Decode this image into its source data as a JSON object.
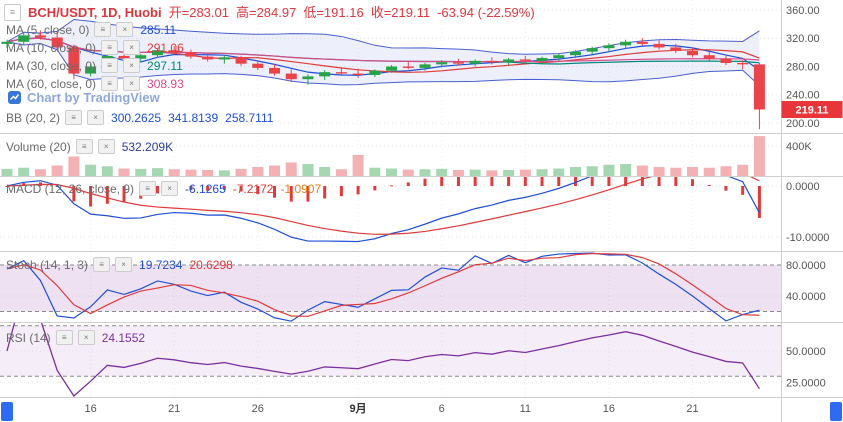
{
  "header": {
    "pair": "BCH/USDT, 1D, Huobi",
    "open": "开=283.01",
    "high": "高=284.97",
    "low": "低=191.16",
    "close": "收=219.11",
    "change": "-63.94 (-22.59%)"
  },
  "overlays": {
    "ma5": {
      "label": "MA (5, close, 0)",
      "value": "285.11"
    },
    "ma10": {
      "label": "MA (10, close, 0)",
      "value": "291.06"
    },
    "ma30": {
      "label": "MA (30, close, 0)",
      "value": "297.11"
    },
    "ma60": {
      "label": "MA (60, close, 0)",
      "value": "308.93"
    },
    "bb": {
      "label": "BB (20, 2)",
      "values": [
        "300.2625",
        "341.8139",
        "258.7111"
      ]
    }
  },
  "watermark": "Chart by TradingView",
  "panes": {
    "volume": {
      "label": "Volume (20)",
      "value": "532.209K"
    },
    "macd": {
      "label": "MACD (12, 26, close, 9)",
      "values": [
        "-6.1265",
        "-7.2172",
        "-1.0907"
      ]
    },
    "stoch": {
      "label": "Stoch (14, 1, 3)",
      "values": [
        "19.7234",
        "20.6298"
      ]
    },
    "rsi": {
      "label": "RSI (14)",
      "value": "24.1552"
    }
  },
  "axis": {
    "price_ticks": [
      "360.00",
      "320.00",
      "280.00",
      "240.00",
      "200.00"
    ],
    "last_price": "219.11",
    "volume_tick": "400K",
    "macd_ticks": [
      "0.0000",
      "-10.0000"
    ],
    "stoch_ticks": [
      "80.0000",
      "40.0000"
    ],
    "rsi_ticks": [
      "50.0000",
      "25.0000"
    ]
  },
  "chart_data": {
    "type": "candlestick",
    "title": "BCH/USDT, 1D, Huobi",
    "exchange": "Huobi",
    "interval": "1D",
    "last": {
      "open": 283.01,
      "high": 284.97,
      "low": 191.16,
      "close": 219.11,
      "change": -63.94,
      "change_pct": -22.59
    },
    "indicators": {
      "ma5": 285.11,
      "ma10": 291.06,
      "ma30": 297.11,
      "ma60": 308.93,
      "bb_20_2": [
        300.2625,
        341.8139,
        258.7111
      ],
      "volume": 532209,
      "macd_12_26_9": [
        -6.1265,
        -7.2172,
        -1.0907
      ],
      "stoch_14_1_3": [
        19.7234,
        20.6298
      ],
      "rsi_14": 24.1552
    },
    "colors": {
      "up": "#26a347",
      "down": "#e8444a",
      "vol_up": "#a5d8b2",
      "vol_down": "#f3b1b4",
      "ma5": "#1f4fd8",
      "ma10": "#e03a3a",
      "ma30": "#00897b",
      "ma60": "#d84a8a",
      "bb": "#4a5fd0",
      "bb_fill": "rgba(74,95,208,0.10)",
      "macd_line": "#1f4fd8",
      "signal_line": "#e03a3a",
      "hist": "#e03a3a",
      "stoch_k": "#1f4fd8",
      "stoch_d": "#e03a3a",
      "band_fill": "rgba(155,89,182,0.18)",
      "rsi_line": "#7b2fa0",
      "rsi_fill": "rgba(155,89,182,0.10)",
      "tag": "#e8353a"
    },
    "price_axis": {
      "ticks": [
        360,
        320,
        280,
        240,
        200
      ],
      "last": 219.11
    },
    "volume_axis": {
      "ticks": [
        400000
      ]
    },
    "macd_axis": {
      "ticks": [
        0,
        -10
      ]
    },
    "stoch_axis": {
      "ticks": [
        80,
        40
      ],
      "bands": [
        80,
        20
      ]
    },
    "rsi_axis": {
      "ticks": [
        50,
        25
      ],
      "bands": [
        70,
        30
      ]
    },
    "x_axis": {
      "labels": [
        {
          "i": 5,
          "t": "16"
        },
        {
          "i": 10,
          "t": "21"
        },
        {
          "i": 15,
          "t": "26"
        },
        {
          "i": 21,
          "t": "9月",
          "b": true
        },
        {
          "i": 26,
          "t": "6"
        },
        {
          "i": 31,
          "t": "11"
        },
        {
          "i": 36,
          "t": "16"
        },
        {
          "i": 41,
          "t": "21"
        }
      ]
    },
    "candles": [
      [
        312,
        318,
        306,
        315,
        95000
      ],
      [
        315,
        327,
        311,
        324,
        110000
      ],
      [
        324,
        331,
        318,
        321,
        90000
      ],
      [
        321,
        329,
        303,
        307,
        140000
      ],
      [
        307,
        311,
        262,
        270,
        260000
      ],
      [
        270,
        284,
        266,
        280,
        150000
      ],
      [
        280,
        297,
        277,
        295,
        130000
      ],
      [
        295,
        301,
        288,
        291,
        100000
      ],
      [
        291,
        298,
        286,
        296,
        95000
      ],
      [
        296,
        306,
        292,
        303,
        105000
      ],
      [
        303,
        309,
        297,
        300,
        90000
      ],
      [
        300,
        304,
        291,
        294,
        85000
      ],
      [
        294,
        299,
        287,
        290,
        80000
      ],
      [
        290,
        296,
        284,
        293,
        75000
      ],
      [
        293,
        295,
        281,
        284,
        95000
      ],
      [
        284,
        289,
        275,
        278,
        120000
      ],
      [
        278,
        283,
        267,
        270,
        140000
      ],
      [
        270,
        276,
        258,
        262,
        180000
      ],
      [
        262,
        269,
        254,
        266,
        160000
      ],
      [
        266,
        275,
        261,
        272,
        120000
      ],
      [
        272,
        279,
        268,
        270,
        90000
      ],
      [
        270,
        277,
        264,
        268,
        280000
      ],
      [
        268,
        276,
        265,
        274,
        110000
      ],
      [
        274,
        282,
        271,
        280,
        100000
      ],
      [
        280,
        287,
        276,
        278,
        85000
      ],
      [
        278,
        285,
        274,
        283,
        90000
      ],
      [
        283,
        289,
        279,
        286,
        95000
      ],
      [
        286,
        291,
        281,
        284,
        80000
      ],
      [
        284,
        290,
        280,
        288,
        85000
      ],
      [
        288,
        293,
        283,
        286,
        75000
      ],
      [
        286,
        292,
        282,
        290,
        80000
      ],
      [
        290,
        295,
        285,
        288,
        85000
      ],
      [
        288,
        294,
        284,
        292,
        90000
      ],
      [
        292,
        298,
        288,
        296,
        100000
      ],
      [
        296,
        303,
        292,
        301,
        120000
      ],
      [
        301,
        308,
        297,
        306,
        130000
      ],
      [
        306,
        313,
        301,
        310,
        150000
      ],
      [
        310,
        318,
        305,
        315,
        160000
      ],
      [
        315,
        320,
        309,
        312,
        140000
      ],
      [
        312,
        317,
        304,
        307,
        120000
      ],
      [
        307,
        312,
        299,
        302,
        110000
      ],
      [
        302,
        307,
        293,
        296,
        120000
      ],
      [
        296,
        301,
        288,
        291,
        110000
      ],
      [
        291,
        295,
        282,
        285,
        130000
      ],
      [
        285,
        289,
        276,
        283.05,
        150000
      ],
      [
        283.01,
        284.97,
        191.16,
        219.11,
        532209
      ]
    ]
  }
}
